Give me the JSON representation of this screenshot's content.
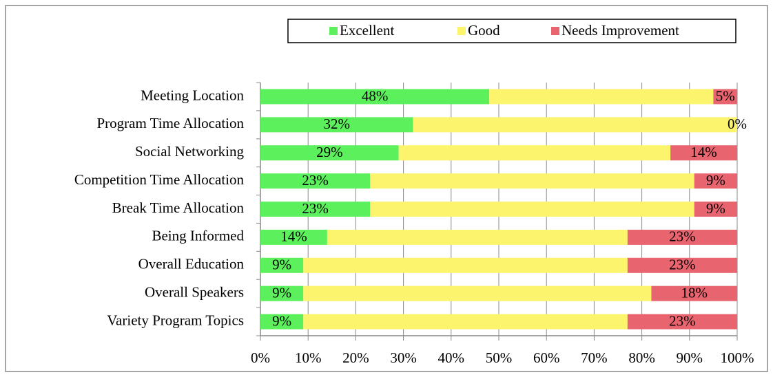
{
  "chart_data": {
    "type": "stacked-barh",
    "categories": [
      "Meeting Location",
      "Program Time Allocation",
      "Social Networking",
      "Competition Time Allocation",
      "Break Time Allocation",
      "Being Informed",
      "Overall Education",
      "Overall Speakers",
      "Variety Program Topics"
    ],
    "series": [
      {
        "name": "Excellent",
        "color": "#5cf05c",
        "values": [
          48,
          32,
          29,
          23,
          23,
          14,
          9,
          9,
          9
        ],
        "value_labels": [
          "48%",
          "32%",
          "29%",
          "23%",
          "23%",
          "14%",
          "9%",
          "9%",
          "9%"
        ]
      },
      {
        "name": "Good",
        "color": "#fbf46c",
        "values": [
          47,
          68,
          57,
          68,
          68,
          63,
          68,
          73,
          68
        ]
      },
      {
        "name": "Needs Improvement",
        "color": "#e8646e",
        "values": [
          5,
          0,
          14,
          9,
          9,
          23,
          23,
          18,
          23
        ],
        "value_labels": [
          "5%",
          "0%",
          "14%",
          "9%",
          "9%",
          "23%",
          "23%",
          "18%",
          "23%"
        ]
      }
    ],
    "xlim": [
      0,
      100
    ],
    "xticks": [
      {
        "value": 0,
        "label": "0%"
      },
      {
        "value": 10,
        "label": "10%"
      },
      {
        "value": 20,
        "label": "20%"
      },
      {
        "value": 30,
        "label": "30%"
      },
      {
        "value": 40,
        "label": "40%"
      },
      {
        "value": 50,
        "label": "50%"
      },
      {
        "value": 60,
        "label": "60%"
      },
      {
        "value": 70,
        "label": "70%"
      },
      {
        "value": 80,
        "label": "80%"
      },
      {
        "value": 90,
        "label": "90%"
      },
      {
        "value": 100,
        "label": "100%"
      }
    ],
    "grid": true,
    "legend": "top"
  }
}
